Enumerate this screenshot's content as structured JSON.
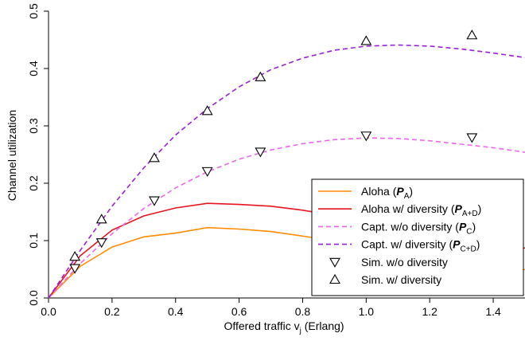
{
  "chart_data": {
    "type": "line",
    "xlabel": "Offered traffic  v",
    "xlabel_sub": "j",
    "xlabel_unit": " (Erlang)",
    "ylabel": "Channel utilization",
    "xlim": [
      0,
      1.5
    ],
    "ylim": [
      0,
      0.5
    ],
    "xticks": [
      0.0,
      0.2,
      0.4,
      0.6,
      0.8,
      1.0,
      1.2,
      1.4
    ],
    "xtick_labels": [
      "0.0",
      "0.2",
      "0.4",
      "0.6",
      "0.8",
      "1.0",
      "1.2",
      "1.4"
    ],
    "yticks": [
      0.0,
      0.1,
      0.2,
      0.3,
      0.4,
      0.5
    ],
    "ytick_labels": [
      "0.0",
      "0.1",
      "0.2",
      "0.3",
      "0.4",
      "0.5"
    ],
    "grid": false,
    "legend_position": "bottom-right",
    "series": [
      {
        "key": "aloha",
        "style": "solid",
        "color": "#ff8c00",
        "x": [
          0,
          0.1,
          0.2,
          0.3,
          0.4,
          0.5,
          0.6,
          0.7,
          0.8,
          0.9,
          1.0,
          1.1,
          1.2,
          1.3,
          1.4,
          1.5
        ],
        "values": [
          0,
          0.0553,
          0.0888,
          0.1065,
          0.1131,
          0.1226,
          0.1201,
          0.1158,
          0.1079,
          0.0997,
          0.0902,
          0.0812,
          0.0725,
          0.064,
          0.0565,
          0.0494
        ]
      },
      {
        "key": "aloha_div",
        "style": "solid",
        "color": "#e8141e",
        "x": [
          0,
          0.1,
          0.2,
          0.3,
          0.4,
          0.5,
          0.6,
          0.7,
          0.8,
          0.9,
          1.0,
          1.1,
          1.2,
          1.3,
          1.4,
          1.5
        ],
        "values": [
          0,
          0.0736,
          0.1183,
          0.143,
          0.1569,
          0.165,
          0.163,
          0.16,
          0.153,
          0.144,
          0.135,
          0.125,
          0.115,
          0.105,
          0.096,
          0.087
        ]
      },
      {
        "key": "capt",
        "style": "dashed",
        "color": "#ee66ee",
        "x": [
          0,
          0.1,
          0.2,
          0.3,
          0.4,
          0.5,
          0.6,
          0.7,
          0.8,
          0.9,
          1.0,
          1.1,
          1.2,
          1.3,
          1.4,
          1.5
        ],
        "values": [
          0,
          0.06,
          0.112,
          0.156,
          0.192,
          0.22,
          0.242,
          0.258,
          0.269,
          0.276,
          0.279,
          0.278,
          0.274,
          0.268,
          0.262,
          0.254
        ]
      },
      {
        "key": "capt_div",
        "style": "dashed",
        "color": "#9b1fd6",
        "x": [
          0,
          0.1,
          0.2,
          0.3,
          0.4,
          0.5,
          0.6,
          0.7,
          0.8,
          0.9,
          1.0,
          1.1,
          1.2,
          1.3,
          1.4,
          1.5
        ],
        "values": [
          0,
          0.083,
          0.16,
          0.227,
          0.284,
          0.33,
          0.368,
          0.398,
          0.418,
          0.432,
          0.439,
          0.441,
          0.439,
          0.434,
          0.427,
          0.419
        ]
      },
      {
        "key": "sim_nodiv",
        "style": "markers",
        "marker": "triangle-down",
        "color": "#000000",
        "x": [
          0.083,
          0.167,
          0.333,
          0.5,
          0.667,
          1.0,
          1.333
        ],
        "values": [
          0.052,
          0.097,
          0.17,
          0.221,
          0.255,
          0.283,
          0.28
        ]
      },
      {
        "key": "sim_div",
        "style": "markers",
        "marker": "triangle-up",
        "color": "#000000",
        "x": [
          0.083,
          0.167,
          0.333,
          0.5,
          0.667,
          1.0,
          1.333
        ],
        "values": [
          0.072,
          0.137,
          0.244,
          0.326,
          0.385,
          0.448,
          0.458
        ]
      }
    ],
    "legend": [
      {
        "key": "aloha",
        "prefix": "Aloha (",
        "sym": "P",
        "sub": "A",
        "suffix": ")"
      },
      {
        "key": "aloha_div",
        "prefix": "Aloha w/ diversity (",
        "sym": "P",
        "sub": "A+D",
        "suffix": ")"
      },
      {
        "key": "capt",
        "prefix": "Capt. w/o diversity  (",
        "sym": "P",
        "sub": "C",
        "suffix": ")"
      },
      {
        "key": "capt_div",
        "prefix": "Capt. w/ diversity  (",
        "sym": "P",
        "sub": "C+D",
        "suffix": ")"
      },
      {
        "key": "sim_nodiv",
        "prefix": "Sim. w/o diversity",
        "sym": "",
        "sub": "",
        "suffix": ""
      },
      {
        "key": "sim_div",
        "prefix": "Sim. w/ diversity",
        "sym": "",
        "sub": "",
        "suffix": ""
      }
    ]
  }
}
